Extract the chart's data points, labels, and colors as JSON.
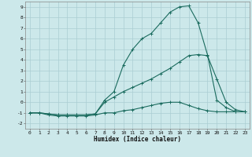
{
  "xlabel": "Humidex (Indice chaleur)",
  "ylabel": "",
  "xlim": [
    -0.5,
    23.5
  ],
  "ylim": [
    -2.5,
    9.5
  ],
  "xticks": [
    0,
    1,
    2,
    3,
    4,
    5,
    6,
    7,
    8,
    9,
    10,
    11,
    12,
    13,
    14,
    15,
    16,
    17,
    18,
    19,
    20,
    21,
    22,
    23
  ],
  "yticks": [
    -2,
    -1,
    0,
    1,
    2,
    3,
    4,
    5,
    6,
    7,
    8,
    9
  ],
  "bg_color": "#cce8ea",
  "line_color": "#1a6b5e",
  "grid_color": "#aacdd2",
  "line1_x": [
    0,
    1,
    2,
    3,
    4,
    5,
    6,
    7,
    8,
    9,
    10,
    11,
    12,
    13,
    14,
    15,
    16,
    17,
    18,
    19,
    20,
    21,
    22,
    23
  ],
  "line1_y": [
    -1.0,
    -1.0,
    -1.2,
    -1.3,
    -1.3,
    -1.3,
    -1.3,
    -1.2,
    -1.0,
    -1.0,
    -0.8,
    -0.7,
    -0.5,
    -0.3,
    -0.1,
    0.0,
    0.0,
    -0.3,
    -0.6,
    -0.8,
    -0.9,
    -0.9,
    -0.9,
    -0.9
  ],
  "line2_x": [
    0,
    1,
    2,
    3,
    4,
    5,
    6,
    7,
    8,
    9,
    10,
    11,
    12,
    13,
    14,
    15,
    16,
    17,
    18,
    19,
    20,
    21,
    22,
    23
  ],
  "line2_y": [
    -1.0,
    -1.0,
    -1.1,
    -1.2,
    -1.2,
    -1.2,
    -1.2,
    -1.1,
    0.0,
    0.5,
    1.0,
    1.4,
    1.8,
    2.2,
    2.7,
    3.2,
    3.8,
    4.4,
    4.5,
    4.4,
    2.2,
    0.0,
    -0.7,
    -0.9
  ],
  "line3_x": [
    0,
    1,
    2,
    3,
    4,
    5,
    6,
    7,
    8,
    9,
    10,
    11,
    12,
    13,
    14,
    15,
    16,
    17,
    18,
    19,
    20,
    21,
    22,
    23
  ],
  "line3_y": [
    -1.0,
    -1.0,
    -1.1,
    -1.2,
    -1.2,
    -1.2,
    -1.2,
    -1.1,
    0.2,
    1.0,
    3.5,
    5.0,
    6.0,
    6.5,
    7.5,
    8.5,
    9.0,
    9.1,
    7.5,
    4.5,
    0.2,
    -0.5,
    -0.9,
    -0.9
  ],
  "xlabel_fontsize": 5.5,
  "tick_fontsize": 4.5,
  "linewidth": 0.8,
  "markersize": 2.5
}
